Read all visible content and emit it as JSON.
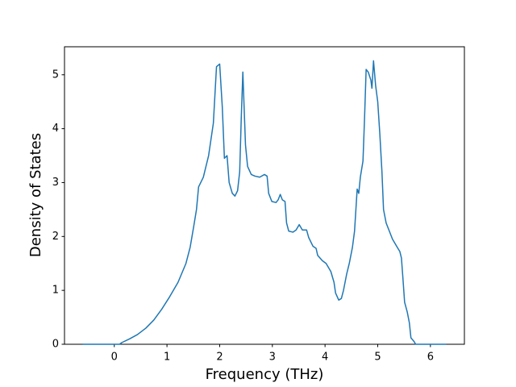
{
  "chart_data": {
    "type": "line",
    "xlabel": "Frequency (THz)",
    "ylabel": "Density of States",
    "x": [
      -0.6,
      0,
      0.1,
      0.14,
      0.29,
      0.44,
      0.6,
      0.75,
      0.9,
      1.05,
      1.21,
      1.36,
      1.44,
      1.51,
      1.56,
      1.6,
      1.69,
      1.79,
      1.88,
      1.94,
      2.0,
      2.05,
      2.09,
      2.14,
      2.18,
      2.24,
      2.29,
      2.34,
      2.38,
      2.41,
      2.44,
      2.49,
      2.53,
      2.6,
      2.67,
      2.76,
      2.85,
      2.9,
      2.93,
      2.99,
      3.07,
      3.11,
      3.15,
      3.19,
      3.24,
      3.27,
      3.31,
      3.39,
      3.45,
      3.51,
      3.57,
      3.65,
      3.69,
      3.77,
      3.83,
      3.86,
      3.95,
      4.02,
      4.11,
      4.17,
      4.2,
      4.26,
      4.31,
      4.35,
      4.41,
      4.46,
      4.52,
      4.56,
      4.61,
      4.64,
      4.67,
      4.72,
      4.75,
      4.78,
      4.82,
      4.87,
      4.89,
      4.92,
      4.96,
      5.0,
      5.04,
      5.08,
      5.11,
      5.16,
      5.2,
      5.28,
      5.37,
      5.42,
      5.45,
      5.48,
      5.51,
      5.56,
      5.6,
      5.63,
      5.69,
      5.72,
      6.3
    ],
    "series": [
      {
        "color": "#1f77b4",
        "values": [
          0,
          0,
          0,
          0.03,
          0.1,
          0.18,
          0.3,
          0.45,
          0.65,
          0.88,
          1.15,
          1.5,
          1.8,
          2.2,
          2.5,
          2.92,
          3.1,
          3.5,
          4.1,
          5.15,
          5.2,
          4.4,
          3.45,
          3.5,
          3.0,
          2.8,
          2.75,
          2.85,
          3.2,
          4.2,
          5.05,
          3.7,
          3.3,
          3.15,
          3.12,
          3.1,
          3.15,
          3.12,
          2.8,
          2.65,
          2.63,
          2.68,
          2.78,
          2.68,
          2.65,
          2.25,
          2.1,
          2.08,
          2.12,
          2.22,
          2.12,
          2.12,
          1.98,
          1.82,
          1.78,
          1.65,
          1.55,
          1.5,
          1.35,
          1.15,
          0.95,
          0.82,
          0.85,
          1.0,
          1.3,
          1.5,
          1.8,
          2.1,
          2.88,
          2.8,
          3.1,
          3.4,
          4.2,
          5.1,
          5.05,
          4.9,
          4.75,
          5.26,
          4.8,
          4.5,
          3.9,
          3.2,
          2.5,
          2.25,
          2.15,
          1.95,
          1.8,
          1.72,
          1.6,
          1.2,
          0.78,
          0.6,
          0.4,
          0.12,
          0.05,
          0,
          0
        ]
      }
    ],
    "xlim": [
      -0.945,
      6.645
    ],
    "xticks": [
      0,
      1,
      2,
      3,
      4,
      5,
      6
    ],
    "ylim": [
      0,
      5.52
    ],
    "yticks": [
      0,
      1,
      2,
      3,
      4,
      5
    ]
  }
}
